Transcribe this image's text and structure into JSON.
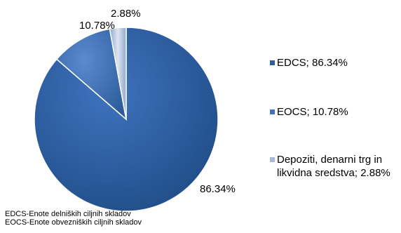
{
  "chart_data": {
    "type": "pie",
    "slices": [
      {
        "name": "EDCS",
        "value": 86.34,
        "label": "86.34%",
        "color": "#2E5D9A",
        "legend": "EDCS; 86.34%"
      },
      {
        "name": "EOCS",
        "value": 10.78,
        "label": "10.78%",
        "color": "#4572B4",
        "legend": "EOCS; 10.78%"
      },
      {
        "name": "Depoziti, denarni trg in likvidna sredstva",
        "value": 2.88,
        "label": "2.88%",
        "color": "#A6B9D6",
        "legend": "Depoziti, denarni trg in likvidna sredstva; 2.88%"
      }
    ],
    "legend_position": "right",
    "start": "top",
    "direction": "clockwise",
    "footnotes": [
      "EDCS-Enote delniških  ciljnih skladov",
      "EOCS-Enote obvezniških ciljnih skladov"
    ]
  }
}
